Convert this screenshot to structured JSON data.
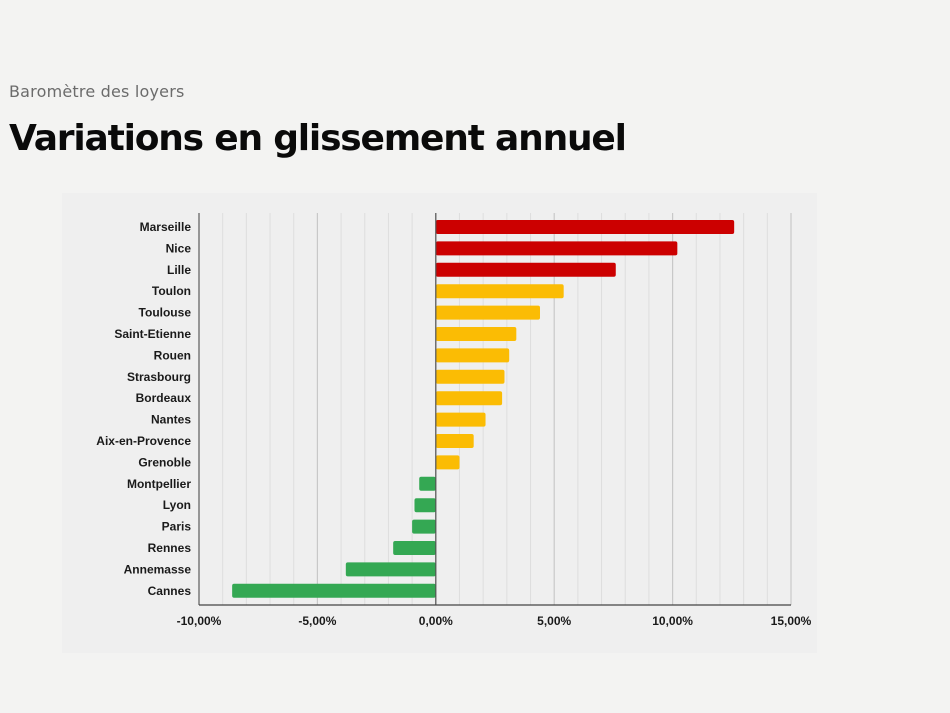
{
  "header": {
    "subtitle": "Baromètre des loyers",
    "title": "Variations en glissement annuel"
  },
  "chart_data": {
    "type": "bar",
    "orientation": "horizontal",
    "categories": [
      "Marseille",
      "Nice",
      "Lille",
      "Toulon",
      "Toulouse",
      "Saint-Etienne",
      "Rouen",
      "Strasbourg",
      "Bordeaux",
      "Nantes",
      "Aix-en-Provence",
      "Grenoble",
      "Montpellier",
      "Lyon",
      "Paris",
      "Rennes",
      "Annemasse",
      "Cannes"
    ],
    "values": [
      12.6,
      10.2,
      7.6,
      5.4,
      4.4,
      3.4,
      3.1,
      2.9,
      2.8,
      2.1,
      1.6,
      1.0,
      -0.7,
      -0.9,
      -1.0,
      -1.8,
      -3.8,
      -8.6
    ],
    "colors": [
      "#cc0000",
      "#cc0000",
      "#cc0000",
      "#fbbc04",
      "#fbbc04",
      "#fbbc04",
      "#fbbc04",
      "#fbbc04",
      "#fbbc04",
      "#fbbc04",
      "#fbbc04",
      "#fbbc04",
      "#34a853",
      "#34a853",
      "#34a853",
      "#34a853",
      "#34a853",
      "#34a853"
    ],
    "xlim": [
      -10,
      15
    ],
    "xticks": [
      -10,
      -5,
      0,
      5,
      10,
      15
    ],
    "xtick_labels": [
      "-10,00%",
      "-5,00%",
      "0,00%",
      "5,00%",
      "10,00%",
      "15,00%"
    ],
    "grid": true,
    "legend": "none",
    "title": "",
    "xlabel": "",
    "ylabel": ""
  }
}
